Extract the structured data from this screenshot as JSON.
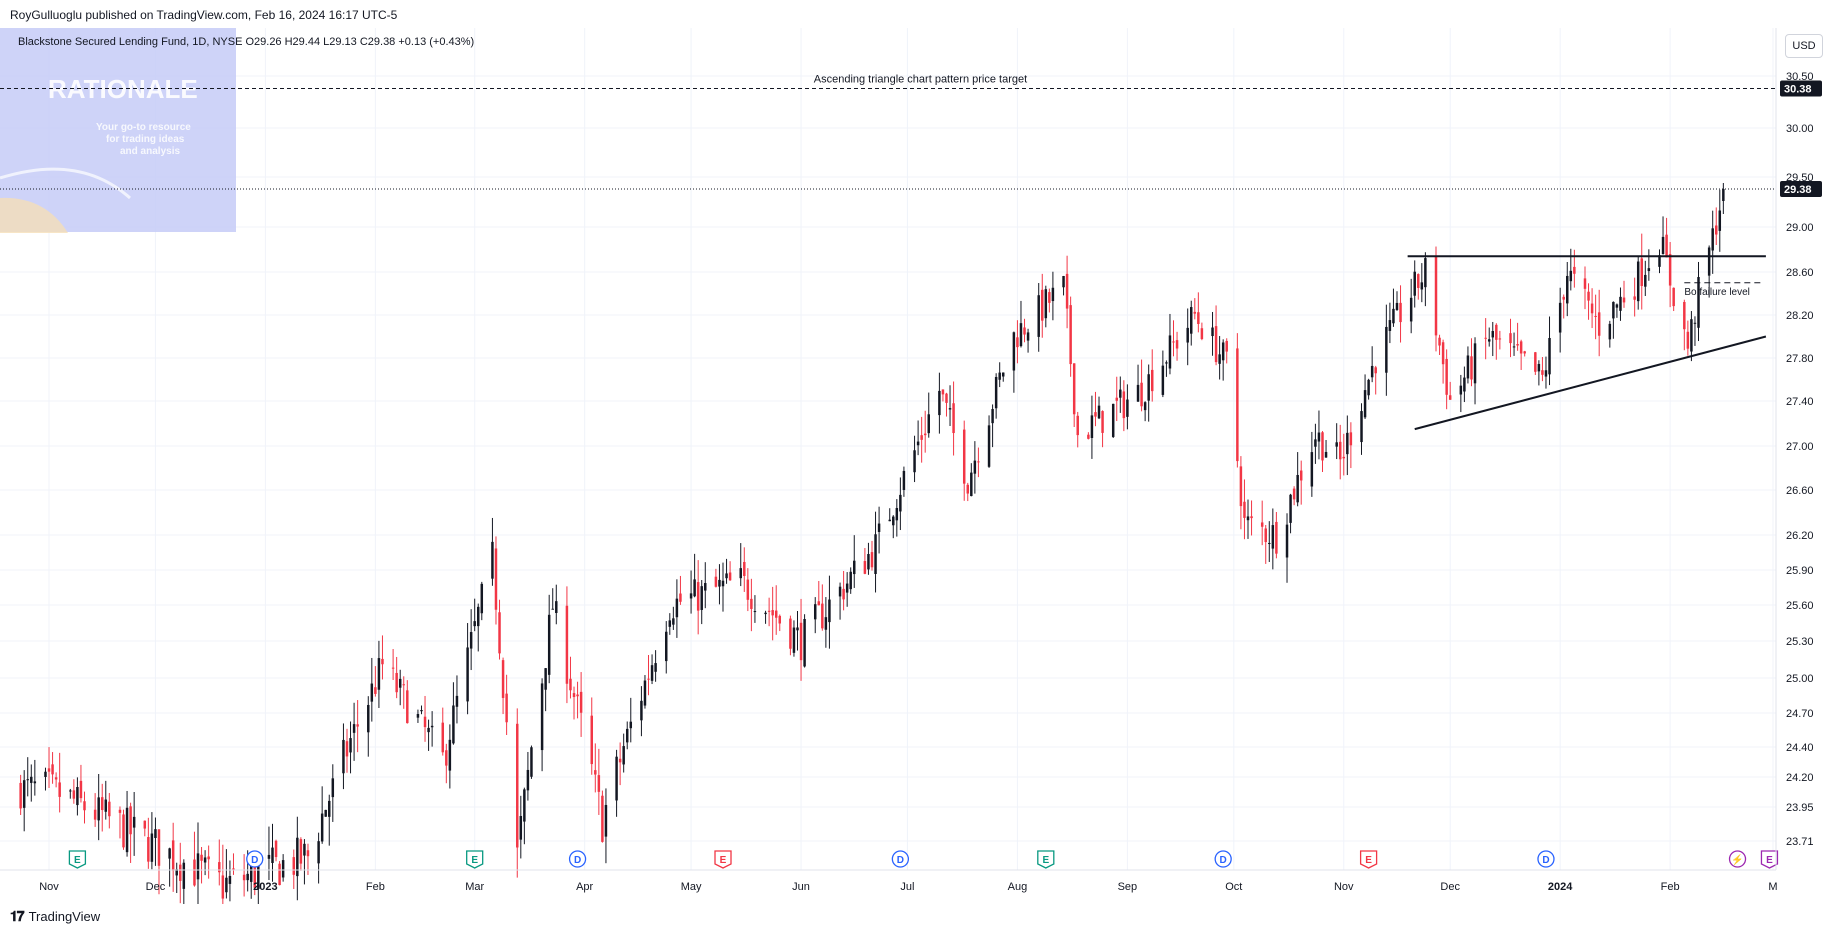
{
  "publisher": "RoyGulluoglu published on TradingView.com, Feb 16, 2024 16:17 UTC-5",
  "currency_button": "USD",
  "symbol_legend": "Blackstone Secured Lending Fund, 1D, NYSE  O29.26  H29.44  L29.13  C29.38  +0.13 (+0.43%)",
  "watermark": {
    "logo": "RATIONALE",
    "tagline": [
      "Your go-to resource",
      "for trading ideas",
      "and analysis"
    ]
  },
  "footer_brand": "TradingView",
  "annotations": {
    "target_label": "Ascending triangle chart pattern price target",
    "failure_label": "Bo failure level"
  },
  "colors": {
    "up": "#131722",
    "down": "#f23645",
    "grid": "#f0f3fa",
    "axis_text": "#131722",
    "watermark_bg": "#c5cbf7",
    "event_earnings": "#089981",
    "event_dividend": "#2962ff",
    "event_economic": "#f23645",
    "event_split": "#9c27b0"
  },
  "chart_data": {
    "type": "candlestick",
    "title": "Blackstone Secured Lending Fund, 1D, NYSE",
    "ohlc_last": {
      "open": 29.26,
      "high": 29.44,
      "low": 29.13,
      "close": 29.38,
      "change": 0.13,
      "change_pct": 0.43
    },
    "y_axis_ticks": [
      30.5,
      30.0,
      29.5,
      29.0,
      28.6,
      28.2,
      27.8,
      27.4,
      27.0,
      26.6,
      26.2,
      25.9,
      25.6,
      25.3,
      25.0,
      24.7,
      24.4,
      24.2,
      23.95,
      23.71
    ],
    "y_axis_labels": [
      "30.50",
      "30.00",
      "29.50",
      "29.00",
      "28.60",
      "28.20",
      "27.80",
      "27.40",
      "27.00",
      "26.60",
      "26.20",
      "25.90",
      "25.60",
      "25.30",
      "25.00",
      "24.70",
      "24.40",
      "24.20",
      "23.95",
      "23.71"
    ],
    "ylim": [
      23.5,
      30.75
    ],
    "x_axis_labels": [
      "Nov",
      "Dec",
      "2023",
      "Feb",
      "Mar",
      "Apr",
      "May",
      "Jun",
      "Jul",
      "Aug",
      "Sep",
      "Oct",
      "Nov",
      "Dec",
      "2024",
      "Feb",
      "M"
    ],
    "x_axis_label_dates": [
      "2022-11-01",
      "2022-12-01",
      "2023-01-01",
      "2023-02-01",
      "2023-03-01",
      "2023-04-01",
      "2023-05-01",
      "2023-06-01",
      "2023-07-01",
      "2023-08-01",
      "2023-09-01",
      "2023-10-01",
      "2023-11-01",
      "2023-12-01",
      "2024-01-01",
      "2024-02-01",
      "2024-03-01"
    ],
    "xlim": [
      "2022-10-21",
      "2024-03-01"
    ],
    "price_labels": [
      {
        "value": 30.38,
        "label": "30.38",
        "note": "target"
      },
      {
        "value": 29.38,
        "label": "29.38",
        "note": "last"
      }
    ],
    "horizontal_lines": [
      {
        "name": "price-target-line",
        "value": 30.38,
        "style": "dashed"
      },
      {
        "name": "last-price-line",
        "value": 29.38,
        "style": "dotted"
      },
      {
        "name": "resistance-line",
        "value": 28.74,
        "style": "solid",
        "from": "2023-11-19",
        "to": "2024-02-28"
      },
      {
        "name": "breakout-failure-line",
        "value": 28.5,
        "style": "dashed",
        "from": "2024-02-05",
        "to": "2024-02-27"
      }
    ],
    "trend_lines": [
      {
        "name": "ascending-support-line",
        "from": {
          "date": "2023-11-21",
          "value": 27.15
        },
        "to": {
          "date": "2024-02-28",
          "value": 28.0
        }
      }
    ],
    "key_points": [
      {
        "date": "2022-11-01",
        "value": 24.1
      },
      {
        "date": "2022-12-20",
        "value": 23.4
      },
      {
        "date": "2023-01-13",
        "value": 23.6
      },
      {
        "date": "2023-02-03",
        "value": 25.1
      },
      {
        "date": "2023-02-20",
        "value": 24.3
      },
      {
        "date": "2023-03-06",
        "value": 26.0
      },
      {
        "date": "2023-03-13",
        "value": 23.6
      },
      {
        "date": "2023-03-23",
        "value": 25.6
      },
      {
        "date": "2023-04-06",
        "value": 23.85
      },
      {
        "date": "2023-04-25",
        "value": 25.6
      },
      {
        "date": "2023-05-15",
        "value": 25.8
      },
      {
        "date": "2023-06-01",
        "value": 25.3
      },
      {
        "date": "2023-06-22",
        "value": 26.1
      },
      {
        "date": "2023-07-05",
        "value": 27.1
      },
      {
        "date": "2023-07-10",
        "value": 27.5
      },
      {
        "date": "2023-07-18",
        "value": 26.7
      },
      {
        "date": "2023-07-31",
        "value": 28.0
      },
      {
        "date": "2023-08-09",
        "value": 28.3
      },
      {
        "date": "2023-08-14",
        "value": 28.45
      },
      {
        "date": "2023-08-18",
        "value": 27.1
      },
      {
        "date": "2023-08-25",
        "value": 27.25
      },
      {
        "date": "2023-09-05",
        "value": 27.5
      },
      {
        "date": "2023-09-20",
        "value": 28.2
      },
      {
        "date": "2023-09-29",
        "value": 27.75
      },
      {
        "date": "2023-10-04",
        "value": 26.3
      },
      {
        "date": "2023-10-13",
        "value": 26.2
      },
      {
        "date": "2023-10-24",
        "value": 27.1
      },
      {
        "date": "2023-10-31",
        "value": 26.85
      },
      {
        "date": "2023-11-10",
        "value": 27.8
      },
      {
        "date": "2023-11-20",
        "value": 28.4
      },
      {
        "date": "2023-11-24",
        "value": 28.6
      },
      {
        "date": "2023-12-01",
        "value": 27.4
      },
      {
        "date": "2023-12-12",
        "value": 28.0
      },
      {
        "date": "2023-12-27",
        "value": 27.6
      },
      {
        "date": "2024-01-03",
        "value": 28.6
      },
      {
        "date": "2024-01-12",
        "value": 28.1
      },
      {
        "date": "2024-01-22",
        "value": 28.5
      },
      {
        "date": "2024-01-29",
        "value": 28.9
      },
      {
        "date": "2024-02-06",
        "value": 27.9
      },
      {
        "date": "2024-02-09",
        "value": 28.4
      },
      {
        "date": "2024-02-13",
        "value": 28.9
      },
      {
        "date": "2024-02-16",
        "value": 29.38
      }
    ],
    "events": [
      {
        "type": "E",
        "kind": "earnings",
        "date": "2022-11-09"
      },
      {
        "type": "D",
        "kind": "dividend",
        "date": "2022-12-29"
      },
      {
        "type": "E",
        "kind": "earnings",
        "date": "2023-03-01"
      },
      {
        "type": "D",
        "kind": "dividend",
        "date": "2023-03-30"
      },
      {
        "type": "E",
        "kind": "economic",
        "date": "2023-05-10"
      },
      {
        "type": "D",
        "kind": "dividend",
        "date": "2023-06-29"
      },
      {
        "type": "E",
        "kind": "earnings",
        "date": "2023-08-09"
      },
      {
        "type": "D",
        "kind": "dividend",
        "date": "2023-09-28"
      },
      {
        "type": "E",
        "kind": "economic",
        "date": "2023-11-08"
      },
      {
        "type": "D",
        "kind": "dividend",
        "date": "2023-12-28"
      },
      {
        "type": "⚡",
        "kind": "split",
        "date": "2024-02-20"
      },
      {
        "type": "E",
        "kind": "split",
        "date": "2024-02-29"
      }
    ]
  }
}
